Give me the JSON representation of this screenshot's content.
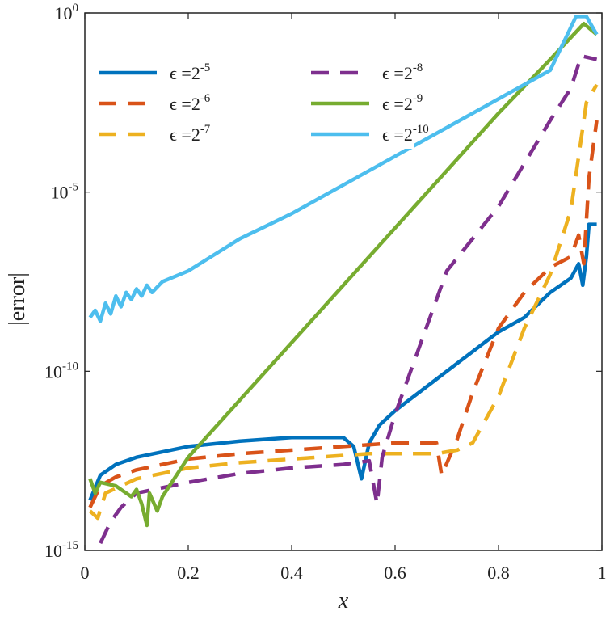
{
  "chart_data": {
    "type": "line",
    "title": "",
    "xlabel": "x",
    "ylabel": "|error|",
    "yscale": "log",
    "xlim": [
      0,
      1
    ],
    "ylim_log10": [
      -15,
      0
    ],
    "grid": false,
    "legend_position": "top-left",
    "x_ticks": [
      {
        "value": 0,
        "label": "0"
      },
      {
        "value": 0.2,
        "label": "0.2"
      },
      {
        "value": 0.4,
        "label": "0.4"
      },
      {
        "value": 0.6,
        "label": "0.6"
      },
      {
        "value": 0.8,
        "label": "0.8"
      },
      {
        "value": 1,
        "label": "1"
      }
    ],
    "y_ticks": [
      {
        "exp": 0,
        "base": "10",
        "power": "0"
      },
      {
        "exp": -5,
        "base": "10",
        "power": "-5"
      },
      {
        "exp": -10,
        "base": "10",
        "power": "-10"
      },
      {
        "exp": -15,
        "base": "10",
        "power": "-15"
      }
    ],
    "series": [
      {
        "name": "ε = 2^-5",
        "label_prefix": "ϵ =2",
        "label_power": "-5",
        "color": "#0072BD",
        "dash": "solid",
        "points": [
          [
            0.01,
            -13.6
          ],
          [
            0.03,
            -12.9
          ],
          [
            0.06,
            -12.6
          ],
          [
            0.1,
            -12.4
          ],
          [
            0.2,
            -12.1
          ],
          [
            0.3,
            -11.95
          ],
          [
            0.4,
            -11.85
          ],
          [
            0.5,
            -11.85
          ],
          [
            0.52,
            -12.1
          ],
          [
            0.535,
            -13.0
          ],
          [
            0.55,
            -12.0
          ],
          [
            0.57,
            -11.5
          ],
          [
            0.6,
            -11.1
          ],
          [
            0.7,
            -10.0
          ],
          [
            0.8,
            -8.9
          ],
          [
            0.85,
            -8.5
          ],
          [
            0.9,
            -7.8
          ],
          [
            0.94,
            -7.4
          ],
          [
            0.955,
            -7.0
          ],
          [
            0.963,
            -7.6
          ],
          [
            0.97,
            -6.8
          ],
          [
            0.975,
            -5.9
          ],
          [
            0.99,
            -5.9
          ]
        ]
      },
      {
        "name": "ε = 2^-6",
        "label_prefix": "ϵ =2",
        "label_power": "-6",
        "color": "#D95319",
        "dash": "dashed",
        "points": [
          [
            0.01,
            -13.8
          ],
          [
            0.03,
            -13.2
          ],
          [
            0.06,
            -12.95
          ],
          [
            0.1,
            -12.75
          ],
          [
            0.2,
            -12.45
          ],
          [
            0.3,
            -12.3
          ],
          [
            0.4,
            -12.2
          ],
          [
            0.5,
            -12.1
          ],
          [
            0.55,
            -12.05
          ],
          [
            0.6,
            -12.0
          ],
          [
            0.68,
            -12.0
          ],
          [
            0.69,
            -12.9
          ],
          [
            0.72,
            -11.9
          ],
          [
            0.75,
            -10.6
          ],
          [
            0.8,
            -8.8
          ],
          [
            0.85,
            -7.8
          ],
          [
            0.9,
            -7.1
          ],
          [
            0.94,
            -6.8
          ],
          [
            0.955,
            -6.2
          ],
          [
            0.965,
            -7.0
          ],
          [
            0.975,
            -4.6
          ],
          [
            0.99,
            -3.0
          ]
        ]
      },
      {
        "name": "ε = 2^-7",
        "label_prefix": "ϵ =2",
        "label_power": "-7",
        "color": "#EDB120",
        "dash": "dashed",
        "points": [
          [
            0.01,
            -13.9
          ],
          [
            0.025,
            -14.1
          ],
          [
            0.04,
            -13.4
          ],
          [
            0.1,
            -13.0
          ],
          [
            0.2,
            -12.7
          ],
          [
            0.3,
            -12.55
          ],
          [
            0.4,
            -12.45
          ],
          [
            0.5,
            -12.35
          ],
          [
            0.55,
            -12.3
          ],
          [
            0.6,
            -12.3
          ],
          [
            0.68,
            -12.3
          ],
          [
            0.72,
            -12.2
          ],
          [
            0.75,
            -12.0
          ],
          [
            0.8,
            -10.7
          ],
          [
            0.85,
            -8.8
          ],
          [
            0.9,
            -7.3
          ],
          [
            0.94,
            -5.5
          ],
          [
            0.97,
            -2.5
          ],
          [
            0.99,
            -2.0
          ]
        ]
      },
      {
        "name": "ε = 2^-8",
        "label_prefix": "ϵ =2",
        "label_power": "-8",
        "color": "#7E2F8E",
        "dash": "dashed",
        "points": [
          [
            0.03,
            -14.8
          ],
          [
            0.05,
            -14.2
          ],
          [
            0.07,
            -13.8
          ],
          [
            0.1,
            -13.4
          ],
          [
            0.2,
            -13.1
          ],
          [
            0.3,
            -12.85
          ],
          [
            0.4,
            -12.7
          ],
          [
            0.5,
            -12.6
          ],
          [
            0.55,
            -12.5
          ],
          [
            0.565,
            -13.7
          ],
          [
            0.575,
            -12.4
          ],
          [
            0.6,
            -11.2
          ],
          [
            0.7,
            -7.2
          ],
          [
            0.8,
            -5.4
          ],
          [
            0.9,
            -3.0
          ],
          [
            0.94,
            -2.1
          ],
          [
            0.96,
            -1.2
          ],
          [
            0.99,
            -1.3
          ]
        ]
      },
      {
        "name": "ε = 2^-9",
        "label_prefix": "ϵ =2",
        "label_power": "-9",
        "color": "#77AC30",
        "dash": "solid",
        "points": [
          [
            0.01,
            -13.0
          ],
          [
            0.02,
            -13.4
          ],
          [
            0.03,
            -13.1
          ],
          [
            0.06,
            -13.2
          ],
          [
            0.09,
            -13.5
          ],
          [
            0.1,
            -13.3
          ],
          [
            0.11,
            -13.7
          ],
          [
            0.12,
            -14.3
          ],
          [
            0.125,
            -13.4
          ],
          [
            0.14,
            -13.9
          ],
          [
            0.15,
            -13.5
          ],
          [
            0.2,
            -12.4
          ],
          [
            0.3,
            -10.8
          ],
          [
            0.4,
            -9.2
          ],
          [
            0.5,
            -7.6
          ],
          [
            0.6,
            -6.0
          ],
          [
            0.7,
            -4.4
          ],
          [
            0.8,
            -2.8
          ],
          [
            0.9,
            -1.3
          ],
          [
            0.965,
            -0.3
          ],
          [
            0.99,
            -0.6
          ]
        ]
      },
      {
        "name": "ε = 2^-10",
        "label_prefix": "ϵ =2",
        "label_power": "-10",
        "color": "#4DBEEE",
        "dash": "solid",
        "points": [
          [
            0.01,
            -8.5
          ],
          [
            0.02,
            -8.3
          ],
          [
            0.03,
            -8.6
          ],
          [
            0.04,
            -8.1
          ],
          [
            0.05,
            -8.4
          ],
          [
            0.06,
            -7.9
          ],
          [
            0.07,
            -8.2
          ],
          [
            0.08,
            -7.8
          ],
          [
            0.09,
            -8.0
          ],
          [
            0.1,
            -7.7
          ],
          [
            0.11,
            -7.9
          ],
          [
            0.12,
            -7.6
          ],
          [
            0.13,
            -7.8
          ],
          [
            0.15,
            -7.5
          ],
          [
            0.2,
            -7.2
          ],
          [
            0.3,
            -6.3
          ],
          [
            0.4,
            -5.6
          ],
          [
            0.5,
            -4.8
          ],
          [
            0.6,
            -4.0
          ],
          [
            0.7,
            -3.2
          ],
          [
            0.8,
            -2.4
          ],
          [
            0.9,
            -1.6
          ],
          [
            0.95,
            -0.1
          ],
          [
            0.97,
            -0.1
          ],
          [
            0.99,
            -0.6
          ]
        ]
      }
    ]
  }
}
